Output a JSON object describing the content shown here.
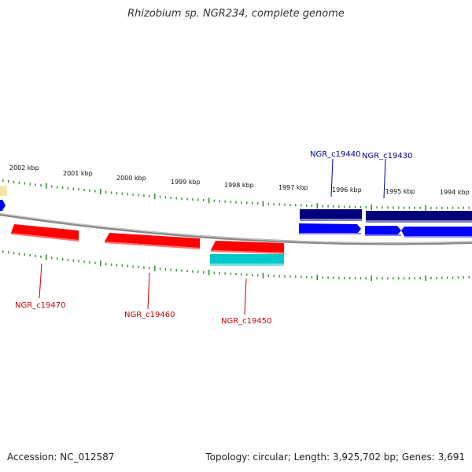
{
  "title": "Rhizobium sp. NGR234, complete genome",
  "footer": {
    "accession": "Accession: NC_012587",
    "summary": "Topology: circular; Length: 3,925,702 bp; Genes: 3,691"
  },
  "colors": {
    "backbone": "#8a8a8a",
    "tick": "#2f8f2f",
    "forward_gene": "#ff0000",
    "forward_gene_light": "#ff7070",
    "forward_gene_cyan": "#00c8c8",
    "reverse_gene_dark": "#00007a",
    "reverse_gene_blue": "#0000ff",
    "label_red": "#cc0000",
    "label_blue": "#000099",
    "partial_feature": "#f5e6a8"
  },
  "scale": {
    "unit": "kbp",
    "ticks": [
      {
        "label": "2002 kbp",
        "value": 2002
      },
      {
        "label": "2001 kbp",
        "value": 2001
      },
      {
        "label": "2000 kbp",
        "value": 2000
      },
      {
        "label": "1999 kbp",
        "value": 1999
      },
      {
        "label": "1998 kbp",
        "value": 1998
      },
      {
        "label": "1997 kbp",
        "value": 1997
      },
      {
        "label": "1996 kbp",
        "value": 1996
      },
      {
        "label": "1995 kbp",
        "value": 1995
      },
      {
        "label": "1994 kbp",
        "value": 1994
      }
    ]
  },
  "genes": [
    {
      "label": "NGR_c19470",
      "strand": "forward",
      "color": "red"
    },
    {
      "label": "NGR_c19460",
      "strand": "forward",
      "color": "red"
    },
    {
      "label": "NGR_c19450",
      "strand": "forward",
      "color": "red"
    },
    {
      "label": "",
      "strand": "forward",
      "color": "cyan"
    },
    {
      "label": "NGR_c19440",
      "strand": "reverse",
      "color": "dark-blue"
    },
    {
      "label": "NGR_c19430",
      "strand": "reverse",
      "color": "dark-blue"
    }
  ]
}
